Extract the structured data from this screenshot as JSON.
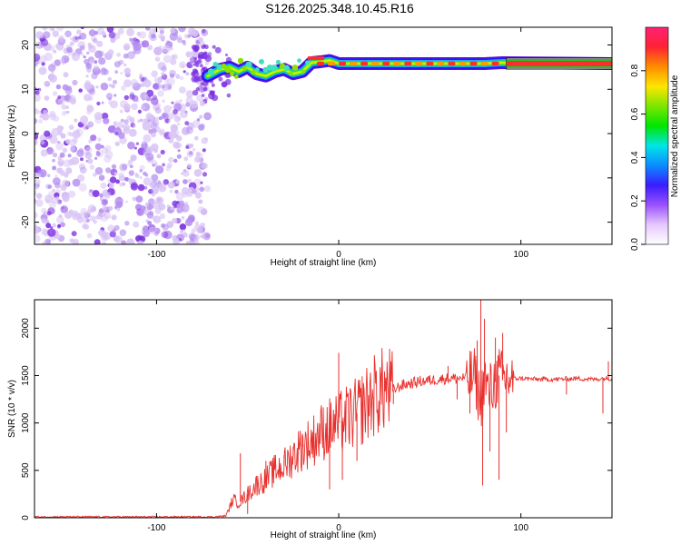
{
  "title": "S126.2025.348.10.45.R16",
  "colors": {
    "snr_line": "#e8312e",
    "ridge_outline": "#111111",
    "noise_light": "#d9c4f5",
    "noise_mid": "#b48ef0",
    "noise_dark": "#7a2de0"
  },
  "chart_data": [
    {
      "type": "heatmap",
      "xlabel": "Height of straight line (km)",
      "ylabel": "Frequency (Hz)",
      "xlim": [
        -167,
        150
      ],
      "ylim": [
        -25,
        24
      ],
      "x_ticks": [
        -100,
        0,
        100
      ],
      "y_ticks": [
        20,
        10,
        0,
        -10,
        -20
      ],
      "x_tick_labels": [
        "-100",
        "0",
        "100"
      ],
      "y_tick_labels": [
        "20",
        "10",
        "0",
        "-10",
        "-20"
      ],
      "colorbar": {
        "label": "Normalized spectral amplitude",
        "range": [
          0,
          1
        ],
        "ticks": [
          0,
          0.2,
          0.4,
          0.6,
          0.8
        ],
        "tick_labels": [
          "0.0",
          "0.2",
          "0.4",
          "0.6",
          "0.8"
        ],
        "stops": [
          "#ffffff",
          "#e6c7ff",
          "#9a52ff",
          "#3a1cff",
          "#0b8cff",
          "#00e6e6",
          "#00e600",
          "#7ce600",
          "#ffe600",
          "#ff8c00",
          "#ff2233",
          "#ff2277"
        ]
      },
      "noise_region": {
        "x": [
          -167,
          -72
        ],
        "y": [
          -25,
          24
        ],
        "amplitude": 0.15
      },
      "ridge": {
        "x": [
          -72,
          -65,
          -60,
          -55,
          -50,
          -45,
          -40,
          -35,
          -30,
          -25,
          -20,
          -15,
          -10,
          -5,
          0,
          10,
          20,
          30,
          40,
          50,
          60,
          70,
          80,
          90,
          150
        ],
        "y": [
          13,
          14.5,
          15,
          14,
          15,
          13.5,
          13,
          14,
          14.5,
          13.5,
          14,
          16,
          16.2,
          16.5,
          15.8,
          15.8,
          15.8,
          15.8,
          15.8,
          15.8,
          15.8,
          15.8,
          15.8,
          16,
          15.8
        ],
        "amplitude": [
          0.3,
          0.4,
          0.4,
          0.35,
          0.45,
          0.4,
          0.45,
          0.5,
          0.5,
          0.5,
          0.6,
          0.75,
          0.85,
          0.85,
          0.8,
          0.85,
          0.9,
          0.85,
          0.9,
          0.85,
          0.9,
          0.85,
          0.9,
          0.9,
          0.95
        ]
      }
    },
    {
      "type": "line",
      "xlabel": "Height of straight line (km)",
      "ylabel": "SNR (10 * v/v)",
      "xlim": [
        -167,
        150
      ],
      "ylim": [
        0,
        2300
      ],
      "x_ticks": [
        -100,
        0,
        100
      ],
      "y_ticks": [
        0,
        500,
        1000,
        1500,
        2000
      ],
      "x_tick_labels": [
        "-100",
        "0",
        "100"
      ],
      "y_tick_labels": [
        "0",
        "500",
        "1000",
        "1500",
        "2000"
      ],
      "series": [
        {
          "x": [
            -167,
            -150,
            -130,
            -110,
            -90,
            -75,
            -68,
            -62,
            -60,
            -58,
            -55,
            -50,
            -45,
            -40,
            -35,
            -30,
            -25,
            -20,
            -15,
            -10,
            -5,
            0,
            5,
            10,
            15,
            20,
            25,
            30,
            35,
            40,
            45,
            50,
            55,
            60,
            65,
            70,
            75,
            78,
            80,
            82,
            85,
            88,
            90,
            92,
            95,
            98,
            100,
            110,
            120,
            130,
            140,
            145,
            150
          ],
          "values": [
            10,
            10,
            10,
            10,
            10,
            10,
            10,
            20,
            100,
            200,
            150,
            250,
            350,
            400,
            500,
            550,
            650,
            750,
            800,
            900,
            950,
            1000,
            1050,
            1100,
            1200,
            1300,
            1350,
            1350,
            1400,
            1420,
            1440,
            1450,
            1460,
            1470,
            1470,
            1480,
            1480,
            1200,
            1500,
            1300,
            1400,
            1500,
            1450,
            1480,
            1460,
            1470,
            1470,
            1460,
            1460,
            1470,
            1460,
            1470,
            1470
          ]
        }
      ],
      "spikes": [
        {
          "x": -54,
          "y": 680
        },
        {
          "x": -50,
          "y": 40
        },
        {
          "x": -40,
          "y": 600
        },
        {
          "x": -30,
          "y": 660
        },
        {
          "x": -25,
          "y": 750
        },
        {
          "x": -20,
          "y": 780
        },
        {
          "x": -15,
          "y": 830
        },
        {
          "x": -10,
          "y": 900
        },
        {
          "x": -5,
          "y": 300
        },
        {
          "x": 0,
          "y": 1740
        },
        {
          "x": 2,
          "y": 400
        },
        {
          "x": 10,
          "y": 600
        },
        {
          "x": 30,
          "y": 1200
        },
        {
          "x": 60,
          "y": 1600
        },
        {
          "x": 65,
          "y": 1250
        },
        {
          "x": 72,
          "y": 1100
        },
        {
          "x": 76,
          "y": 1870
        },
        {
          "x": 78,
          "y": 2300
        },
        {
          "x": 79,
          "y": 340
        },
        {
          "x": 80,
          "y": 2100
        },
        {
          "x": 83,
          "y": 700
        },
        {
          "x": 86,
          "y": 1900
        },
        {
          "x": 88,
          "y": 400
        },
        {
          "x": 90,
          "y": 1950
        },
        {
          "x": 92,
          "y": 900
        },
        {
          "x": 95,
          "y": 1500
        },
        {
          "x": 125,
          "y": 1300
        },
        {
          "x": 145,
          "y": 1100
        },
        {
          "x": 148,
          "y": 1650
        }
      ]
    }
  ]
}
